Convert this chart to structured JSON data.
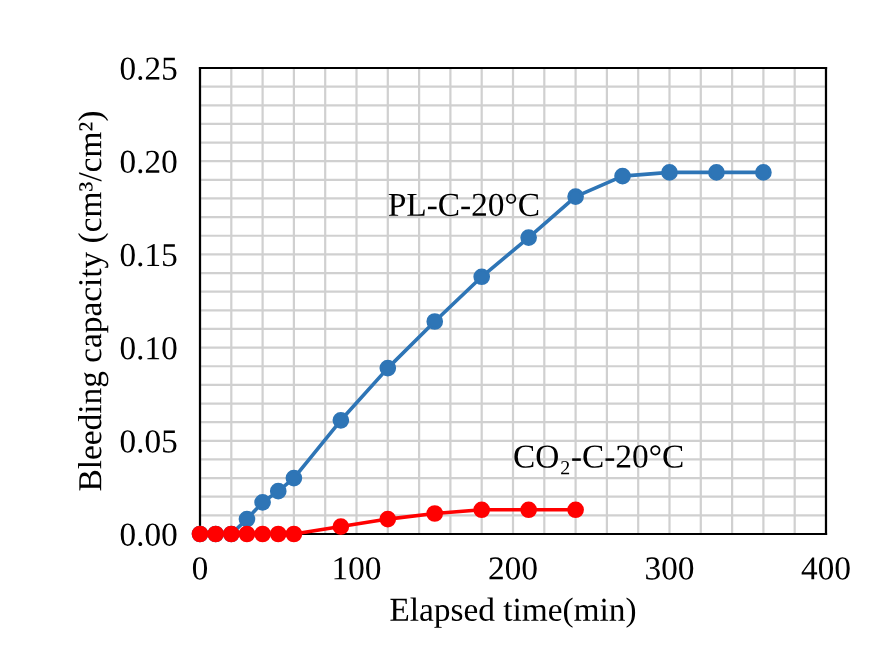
{
  "chart_data": {
    "type": "line",
    "xlabel": "Elapsed time(min)",
    "ylabel": "Bleeding capacity (cm³/cm²)",
    "xlim": [
      0,
      400
    ],
    "xticks": [
      0,
      100,
      200,
      300,
      400
    ],
    "ylim": [
      0,
      0.25
    ],
    "yticks": [
      {
        "value": 0,
        "label": "0.00"
      },
      {
        "value": 0.05,
        "label": "0.05"
      },
      {
        "value": 0.1,
        "label": "0.10"
      },
      {
        "value": 0.15,
        "label": "0.15"
      },
      {
        "value": 0.2,
        "label": "0.20"
      },
      {
        "value": 0.25,
        "label": "0.25"
      }
    ],
    "grid": true,
    "marker": "circle",
    "legend": false,
    "series": [
      {
        "name": "PL-C-20°C",
        "color": "#2e75b6",
        "x": [
          0,
          10,
          20,
          30,
          40,
          50,
          60,
          90,
          120,
          150,
          180,
          210,
          240,
          270,
          300,
          330,
          360
        ],
        "values": [
          0,
          0,
          0,
          0.008,
          0.017,
          0.023,
          0.03,
          0.061,
          0.089,
          0.114,
          0.138,
          0.159,
          0.181,
          0.192,
          0.194,
          0.194,
          0.194
        ]
      },
      {
        "name": "CO₂-C-20°C",
        "color": "#ff0000",
        "x": [
          0,
          10,
          20,
          30,
          40,
          50,
          60,
          90,
          120,
          150,
          180,
          210,
          240
        ],
        "values": [
          0,
          0,
          0,
          0,
          0,
          0,
          0,
          0.004,
          0.008,
          0.011,
          0.013,
          0.013,
          0.013
        ]
      }
    ]
  }
}
